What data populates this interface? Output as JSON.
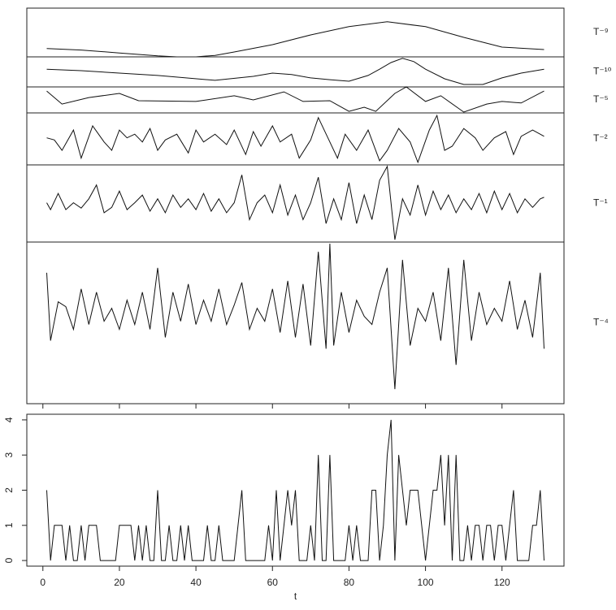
{
  "chart_data": [
    {
      "type": "line",
      "label": "T⁻⁹",
      "xlim": [
        -4.2,
        136.2
      ],
      "ylim": [
        0,
        1
      ],
      "x": [
        1,
        10,
        20,
        30,
        35,
        40,
        45,
        50,
        60,
        70,
        80,
        90,
        100,
        110,
        120,
        131
      ],
      "values": [
        0.17,
        0.14,
        0.08,
        0.02,
        0,
        0,
        0.03,
        0.1,
        0.25,
        0.45,
        0.62,
        0.72,
        0.62,
        0.4,
        0.2,
        0.15
      ]
    },
    {
      "type": "line",
      "label": "T⁻¹⁰",
      "xlim": [
        -4.2,
        136.2
      ],
      "ylim": [
        0,
        1
      ],
      "x": [
        1,
        10,
        20,
        30,
        45,
        55,
        60,
        65,
        70,
        75,
        80,
        85,
        88,
        91,
        94,
        97,
        100,
        105,
        110,
        115,
        120,
        125,
        131
      ],
      "values": [
        0.59,
        0.54,
        0.46,
        0.38,
        0.22,
        0.35,
        0.46,
        0.41,
        0.3,
        0.24,
        0.19,
        0.38,
        0.59,
        0.81,
        0.95,
        0.84,
        0.59,
        0.27,
        0.08,
        0.08,
        0.3,
        0.46,
        0.59
      ]
    },
    {
      "type": "line",
      "label": "T⁻⁵",
      "xlim": [
        -4.2,
        136.2
      ],
      "ylim": [
        0,
        1
      ],
      "x": [
        1,
        5,
        12,
        20,
        25,
        40,
        50,
        55,
        63,
        68,
        75,
        80,
        84,
        87,
        92,
        95,
        100,
        104,
        110,
        116,
        120,
        125,
        131
      ],
      "values": [
        0.84,
        0.34,
        0.59,
        0.75,
        0.47,
        0.44,
        0.66,
        0.5,
        0.81,
        0.44,
        0.47,
        0.06,
        0.22,
        0.06,
        0.75,
        1.0,
        0.44,
        0.66,
        0.03,
        0.34,
        0.44,
        0.38,
        0.84
      ]
    },
    {
      "type": "line",
      "label": "T⁻²",
      "xlim": [
        -4.2,
        136.2
      ],
      "ylim": [
        0,
        1
      ],
      "x": [
        1,
        3,
        5,
        8,
        10,
        13,
        16,
        18,
        20,
        22,
        24,
        26,
        28,
        30,
        32,
        35,
        38,
        40,
        42,
        45,
        48,
        50,
        53,
        55,
        57,
        60,
        62,
        65,
        67,
        70,
        72,
        75,
        77,
        79,
        82,
        85,
        88,
        90,
        93,
        96,
        98,
        101,
        103,
        105,
        107,
        110,
        113,
        115,
        118,
        121,
        123,
        125,
        128,
        131
      ],
      "values": [
        0.52,
        0.48,
        0.28,
        0.67,
        0.13,
        0.75,
        0.44,
        0.28,
        0.67,
        0.52,
        0.59,
        0.44,
        0.7,
        0.28,
        0.48,
        0.59,
        0.23,
        0.67,
        0.44,
        0.59,
        0.39,
        0.67,
        0.2,
        0.64,
        0.36,
        0.75,
        0.44,
        0.59,
        0.13,
        0.48,
        0.91,
        0.44,
        0.13,
        0.59,
        0.28,
        0.67,
        0.08,
        0.28,
        0.7,
        0.44,
        0.05,
        0.67,
        0.95,
        0.28,
        0.36,
        0.7,
        0.52,
        0.28,
        0.52,
        0.64,
        0.2,
        0.55,
        0.67,
        0.55
      ]
    },
    {
      "type": "line",
      "label": "T⁻¹",
      "xlim": [
        -4.2,
        136.2
      ],
      "ylim": [
        0,
        1
      ],
      "x": [
        1,
        2,
        4,
        6,
        8,
        10,
        12,
        14,
        16,
        18,
        20,
        22,
        24,
        26,
        28,
        30,
        32,
        34,
        36,
        38,
        40,
        42,
        44,
        46,
        48,
        50,
        52,
        54,
        56,
        58,
        60,
        62,
        64,
        66,
        68,
        70,
        72,
        74,
        76,
        78,
        80,
        82,
        84,
        86,
        88,
        90,
        92,
        94,
        96,
        98,
        100,
        102,
        104,
        106,
        108,
        110,
        112,
        114,
        116,
        118,
        120,
        122,
        124,
        126,
        128,
        130,
        131
      ],
      "values": [
        0.51,
        0.42,
        0.63,
        0.42,
        0.51,
        0.44,
        0.56,
        0.74,
        0.38,
        0.45,
        0.66,
        0.42,
        0.51,
        0.61,
        0.4,
        0.56,
        0.38,
        0.61,
        0.45,
        0.56,
        0.42,
        0.63,
        0.4,
        0.56,
        0.38,
        0.51,
        0.87,
        0.29,
        0.51,
        0.61,
        0.38,
        0.74,
        0.35,
        0.61,
        0.29,
        0.51,
        0.84,
        0.24,
        0.56,
        0.29,
        0.77,
        0.24,
        0.61,
        0.29,
        0.8,
        0.98,
        0.03,
        0.56,
        0.35,
        0.74,
        0.35,
        0.66,
        0.42,
        0.61,
        0.38,
        0.56,
        0.42,
        0.63,
        0.38,
        0.66,
        0.42,
        0.63,
        0.38,
        0.56,
        0.45,
        0.56,
        0.58
      ]
    },
    {
      "type": "line",
      "label": "T⁻⁴",
      "xlim": [
        -4.2,
        136.2
      ],
      "ylim": [
        0,
        1
      ],
      "x": [
        1,
        2,
        4,
        6,
        8,
        10,
        12,
        14,
        16,
        18,
        20,
        22,
        24,
        26,
        28,
        30,
        32,
        34,
        36,
        38,
        40,
        42,
        44,
        46,
        48,
        50,
        52,
        54,
        56,
        58,
        60,
        62,
        64,
        66,
        68,
        70,
        72,
        74,
        75,
        76,
        78,
        80,
        82,
        84,
        86,
        88,
        90,
        92,
        94,
        96,
        98,
        100,
        102,
        104,
        106,
        108,
        110,
        112,
        114,
        116,
        118,
        120,
        122,
        124,
        126,
        128,
        130,
        131
      ],
      "values": [
        0.81,
        0.39,
        0.63,
        0.6,
        0.46,
        0.71,
        0.49,
        0.69,
        0.51,
        0.59,
        0.46,
        0.64,
        0.49,
        0.69,
        0.46,
        0.84,
        0.41,
        0.69,
        0.51,
        0.74,
        0.49,
        0.64,
        0.51,
        0.71,
        0.49,
        0.61,
        0.75,
        0.46,
        0.59,
        0.51,
        0.71,
        0.44,
        0.76,
        0.41,
        0.74,
        0.36,
        0.94,
        0.34,
        0.99,
        0.36,
        0.69,
        0.44,
        0.64,
        0.54,
        0.49,
        0.69,
        0.84,
        0.09,
        0.89,
        0.36,
        0.59,
        0.51,
        0.69,
        0.39,
        0.84,
        0.24,
        0.89,
        0.39,
        0.69,
        0.49,
        0.59,
        0.51,
        0.76,
        0.46,
        0.64,
        0.41,
        0.81,
        0.34
      ]
    },
    {
      "type": "line",
      "xlabel": "t",
      "xlim": [
        -4.2,
        136.2
      ],
      "ylim": [
        -0.16,
        4.16
      ],
      "xticks": [
        0,
        20,
        40,
        60,
        80,
        100,
        120
      ],
      "yticks": [
        0,
        1,
        2,
        3,
        4
      ],
      "x": [
        1,
        2,
        3,
        4,
        5,
        6,
        7,
        8,
        9,
        10,
        11,
        12,
        13,
        14,
        15,
        16,
        17,
        18,
        19,
        20,
        21,
        22,
        23,
        24,
        25,
        26,
        27,
        28,
        29,
        30,
        31,
        32,
        33,
        34,
        35,
        36,
        37,
        38,
        39,
        40,
        41,
        42,
        43,
        44,
        45,
        46,
        47,
        48,
        49,
        50,
        51,
        52,
        53,
        54,
        55,
        56,
        57,
        58,
        59,
        60,
        61,
        62,
        63,
        64,
        65,
        66,
        67,
        68,
        69,
        70,
        71,
        72,
        73,
        74,
        75,
        76,
        77,
        78,
        79,
        80,
        81,
        82,
        83,
        84,
        85,
        86,
        87,
        88,
        89,
        90,
        91,
        92,
        93,
        94,
        95,
        96,
        97,
        98,
        99,
        100,
        101,
        102,
        103,
        104,
        105,
        106,
        107,
        108,
        109,
        110,
        111,
        112,
        113,
        114,
        115,
        116,
        117,
        118,
        119,
        120,
        121,
        122,
        123,
        124,
        125,
        126,
        127,
        128,
        129,
        130,
        131
      ],
      "values": [
        2,
        0,
        1,
        1,
        1,
        0,
        1,
        0,
        0,
        1,
        0,
        1,
        1,
        1,
        0,
        0,
        0,
        0,
        0,
        1,
        1,
        1,
        1,
        0,
        1,
        0,
        1,
        0,
        0,
        2,
        0,
        0,
        1,
        0,
        0,
        1,
        0,
        1,
        0,
        0,
        0,
        0,
        1,
        0,
        0,
        1,
        0,
        0,
        0,
        0,
        1,
        2,
        0,
        0,
        0,
        0,
        0,
        0,
        1,
        0,
        2,
        0,
        1,
        2,
        1,
        2,
        0,
        0,
        0,
        1,
        0,
        3,
        0,
        0,
        3,
        0,
        0,
        0,
        0,
        1,
        0,
        1,
        0,
        0,
        0,
        2,
        2,
        0,
        1,
        3,
        4,
        0,
        3,
        2,
        1,
        2,
        2,
        2,
        1,
        0,
        1,
        2,
        2,
        3,
        1,
        3,
        0,
        3,
        0,
        0,
        1,
        0,
        1,
        1,
        0,
        1,
        1,
        0,
        1,
        1,
        0,
        1,
        2,
        0,
        0,
        0,
        0,
        1,
        1,
        2,
        0
      ]
    }
  ]
}
